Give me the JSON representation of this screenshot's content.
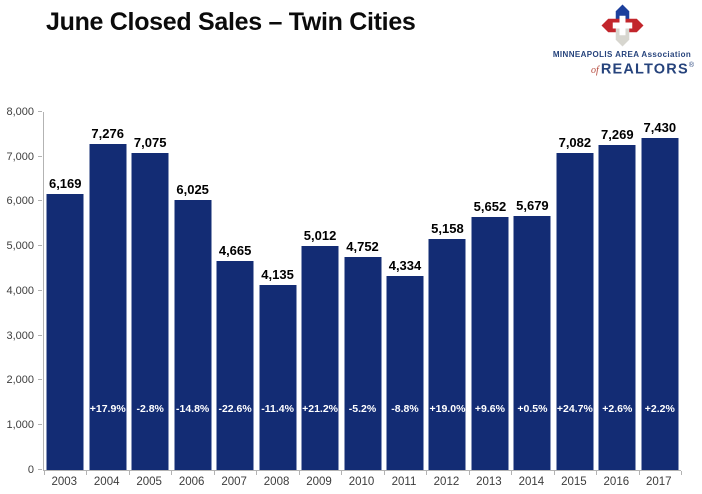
{
  "header": {
    "title": "June Closed Sales – Twin Cities"
  },
  "logo": {
    "line1": "MINNEAPOLIS AREA Association",
    "of": "of",
    "name": "REALTORS",
    "registered": "®",
    "navy": "#26437c",
    "red": "#c2262c",
    "silver": "#d7d6cf",
    "blue": "#1c3f9c"
  },
  "chart_data": {
    "type": "bar",
    "title": "June Closed Sales – Twin Cities",
    "categories": [
      "2003",
      "2004",
      "2005",
      "2006",
      "2007",
      "2008",
      "2009",
      "2010",
      "2011",
      "2012",
      "2013",
      "2014",
      "2015",
      "2016",
      "2017"
    ],
    "values": [
      6169,
      7276,
      7075,
      6025,
      4665,
      4135,
      5012,
      4752,
      4334,
      5158,
      5652,
      5679,
      7082,
      7269,
      7430
    ],
    "value_labels": [
      "6,169",
      "7,276",
      "7,075",
      "6,025",
      "4,665",
      "4,135",
      "5,012",
      "4,752",
      "4,334",
      "5,158",
      "5,652",
      "5,679",
      "7,082",
      "7,269",
      "7,430"
    ],
    "pct_change_labels": [
      "",
      "+17.9%",
      "-2.8%",
      "-14.8%",
      "-22.6%",
      "-11.4%",
      "+21.2%",
      "-5.2%",
      "-8.8%",
      "+19.0%",
      "+9.6%",
      "+0.5%",
      "+24.7%",
      "+2.6%",
      "+2.2%"
    ],
    "xlabel": "",
    "ylabel": "",
    "ylim": [
      0,
      8000
    ],
    "ytick_step": 1000,
    "ytick_labels": [
      "0",
      "1,000",
      "2,000",
      "3,000",
      "4,000",
      "5,000",
      "6,000",
      "7,000",
      "8,000"
    ],
    "grid": false,
    "legend": "none",
    "bar_color": "#132c74",
    "axis_color": "#b3b3b3"
  }
}
